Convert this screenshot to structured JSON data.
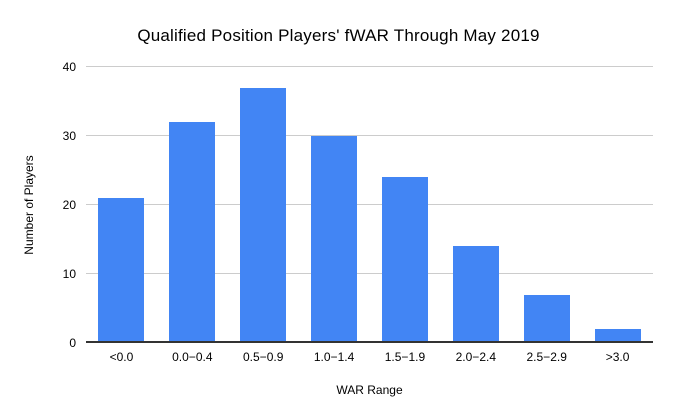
{
  "chart_data": {
    "type": "bar",
    "title": "Qualified Position Players' fWAR Through May 2019",
    "xlabel": "WAR Range",
    "ylabel": "Number of Players",
    "categories": [
      "<0.0",
      "0.0−0.4",
      "0.5−0.9",
      "1.0−1.4",
      "1.5−1.9",
      "2.0−2.4",
      "2.5−2.9",
      ">3.0"
    ],
    "values": [
      21,
      32,
      37,
      30,
      24,
      14,
      7,
      2
    ],
    "ylim": [
      0,
      40
    ],
    "y_ticks": [
      0,
      10,
      20,
      30,
      40
    ],
    "grid": "horizontal",
    "legend": "none"
  },
  "colors": {
    "background": "#ffffff",
    "bar": "#4285f4",
    "gridline": "#cccccc",
    "baseline": "#333333",
    "text": "#000000"
  }
}
